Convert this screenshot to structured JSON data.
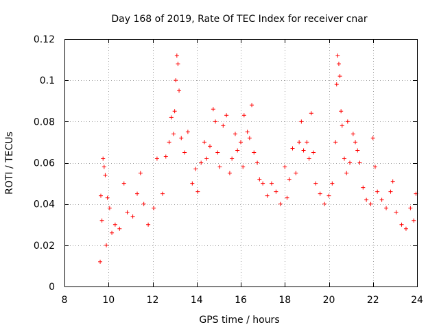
{
  "chart_data": {
    "type": "scatter",
    "title": "Day 168 of 2019, Rate Of TEC Index for receiver cnar",
    "xlabel": "GPS time / hours",
    "ylabel": "ROTI / TECUs",
    "xlim": [
      8,
      24
    ],
    "ylim": [
      0,
      0.12
    ],
    "xticks": [
      "8",
      "10",
      "12",
      "14",
      "16",
      "18",
      "20",
      "22",
      "24"
    ],
    "yticks": [
      "0",
      "0.02",
      "0.04",
      "0.06",
      "0.08",
      "0.1",
      "0.12"
    ],
    "grid": true,
    "marker": "+",
    "marker_color": "#ff0000",
    "series": [
      {
        "name": "ROTI",
        "points": [
          [
            9.62,
            0.012
          ],
          [
            9.65,
            0.044
          ],
          [
            9.7,
            0.032
          ],
          [
            9.75,
            0.062
          ],
          [
            9.8,
            0.058
          ],
          [
            9.85,
            0.054
          ],
          [
            9.9,
            0.02
          ],
          [
            9.95,
            0.043
          ],
          [
            10.05,
            0.038
          ],
          [
            10.15,
            0.026
          ],
          [
            10.3,
            0.03
          ],
          [
            10.5,
            0.028
          ],
          [
            10.7,
            0.05
          ],
          [
            10.85,
            0.036
          ],
          [
            11.1,
            0.034
          ],
          [
            11.3,
            0.045
          ],
          [
            11.45,
            0.055
          ],
          [
            11.6,
            0.04
          ],
          [
            11.8,
            0.03
          ],
          [
            12.05,
            0.038
          ],
          [
            12.2,
            0.062
          ],
          [
            12.45,
            0.045
          ],
          [
            12.6,
            0.063
          ],
          [
            12.75,
            0.07
          ],
          [
            12.85,
            0.082
          ],
          [
            12.95,
            0.074
          ],
          [
            13.0,
            0.085
          ],
          [
            13.05,
            0.1
          ],
          [
            13.1,
            0.112
          ],
          [
            13.15,
            0.108
          ],
          [
            13.2,
            0.095
          ],
          [
            13.3,
            0.072
          ],
          [
            13.45,
            0.065
          ],
          [
            13.6,
            0.075
          ],
          [
            13.8,
            0.05
          ],
          [
            13.95,
            0.057
          ],
          [
            14.05,
            0.046
          ],
          [
            14.2,
            0.06
          ],
          [
            14.35,
            0.07
          ],
          [
            14.45,
            0.062
          ],
          [
            14.6,
            0.068
          ],
          [
            14.75,
            0.086
          ],
          [
            14.85,
            0.08
          ],
          [
            14.95,
            0.065
          ],
          [
            15.05,
            0.058
          ],
          [
            15.2,
            0.078
          ],
          [
            15.35,
            0.083
          ],
          [
            15.5,
            0.055
          ],
          [
            15.6,
            0.062
          ],
          [
            15.75,
            0.074
          ],
          [
            15.85,
            0.066
          ],
          [
            16.0,
            0.07
          ],
          [
            16.1,
            0.058
          ],
          [
            16.15,
            0.083
          ],
          [
            16.3,
            0.075
          ],
          [
            16.4,
            0.072
          ],
          [
            16.5,
            0.088
          ],
          [
            16.6,
            0.065
          ],
          [
            16.75,
            0.06
          ],
          [
            16.85,
            0.052
          ],
          [
            17.0,
            0.05
          ],
          [
            17.2,
            0.044
          ],
          [
            17.4,
            0.05
          ],
          [
            17.6,
            0.046
          ],
          [
            17.8,
            0.04
          ],
          [
            18.0,
            0.058
          ],
          [
            18.1,
            0.043
          ],
          [
            18.2,
            0.052
          ],
          [
            18.35,
            0.067
          ],
          [
            18.5,
            0.055
          ],
          [
            18.65,
            0.07
          ],
          [
            18.75,
            0.08
          ],
          [
            18.85,
            0.066
          ],
          [
            19.0,
            0.07
          ],
          [
            19.1,
            0.062
          ],
          [
            19.2,
            0.084
          ],
          [
            19.3,
            0.065
          ],
          [
            19.4,
            0.05
          ],
          [
            19.6,
            0.045
          ],
          [
            19.8,
            0.04
          ],
          [
            20.0,
            0.044
          ],
          [
            20.15,
            0.05
          ],
          [
            20.3,
            0.07
          ],
          [
            20.35,
            0.098
          ],
          [
            20.4,
            0.112
          ],
          [
            20.45,
            0.108
          ],
          [
            20.5,
            0.102
          ],
          [
            20.55,
            0.085
          ],
          [
            20.6,
            0.078
          ],
          [
            20.7,
            0.062
          ],
          [
            20.8,
            0.055
          ],
          [
            20.85,
            0.08
          ],
          [
            20.95,
            0.06
          ],
          [
            21.1,
            0.074
          ],
          [
            21.2,
            0.07
          ],
          [
            21.3,
            0.066
          ],
          [
            21.4,
            0.06
          ],
          [
            21.55,
            0.048
          ],
          [
            21.7,
            0.042
          ],
          [
            21.9,
            0.04
          ],
          [
            22.0,
            0.072
          ],
          [
            22.1,
            0.058
          ],
          [
            22.2,
            0.046
          ],
          [
            22.4,
            0.042
          ],
          [
            22.6,
            0.038
          ],
          [
            22.8,
            0.046
          ],
          [
            22.9,
            0.051
          ],
          [
            23.05,
            0.036
          ],
          [
            23.3,
            0.03
          ],
          [
            23.5,
            0.028
          ],
          [
            23.7,
            0.038
          ],
          [
            23.85,
            0.032
          ],
          [
            23.95,
            0.045
          ]
        ]
      }
    ]
  }
}
